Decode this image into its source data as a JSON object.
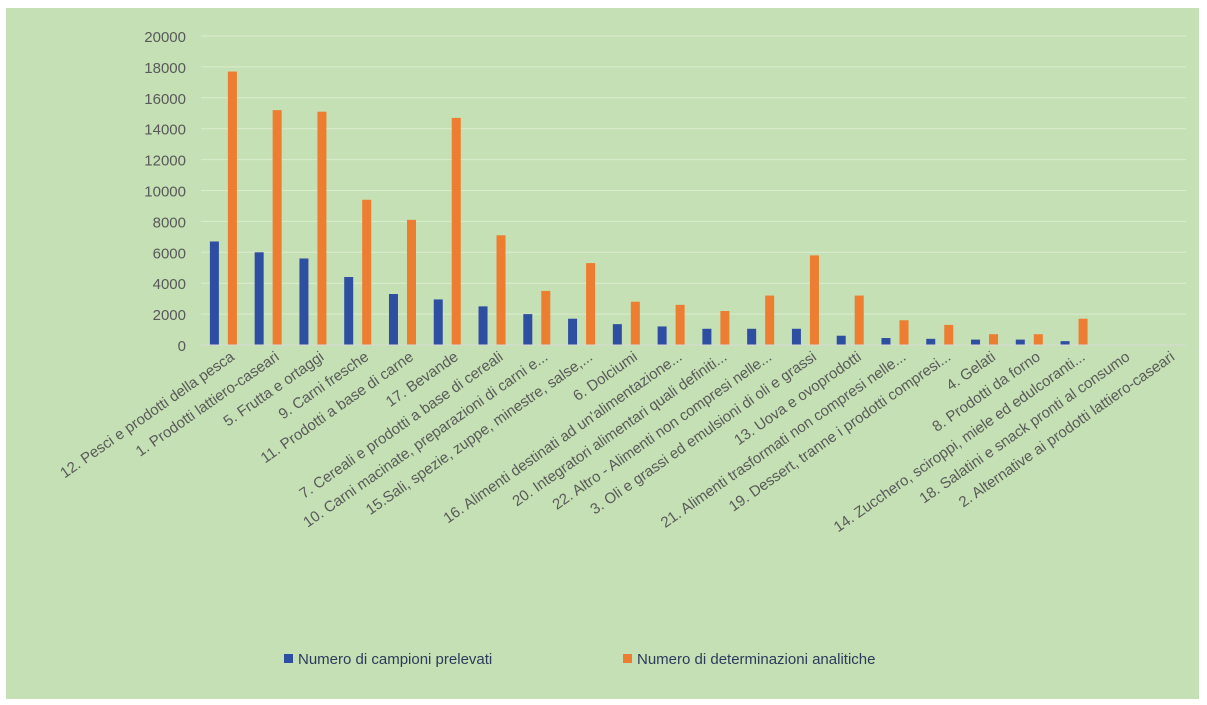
{
  "colors": {
    "background": "#c5e0b4",
    "gridline": "#dbeccf",
    "series1": "#2e4ea1",
    "series2": "#ed7d31",
    "tick_text": "#595959"
  },
  "chart_data": {
    "type": "bar",
    "title": "",
    "xlabel": "",
    "ylabel": "",
    "ylim": [
      0,
      20000
    ],
    "yticks": [
      0,
      2000,
      4000,
      6000,
      8000,
      10000,
      12000,
      14000,
      16000,
      18000,
      20000
    ],
    "grid": true,
    "legend_position": "bottom",
    "categories": [
      "12. Pesci e prodotti della pesca",
      "1. Prodotti lattiero-caseari",
      "5. Frutta e ortaggi",
      "9. Carni fresche",
      "11. Prodotti a base di carne",
      "17. Bevande",
      "7. Cereali e prodotti a base di cereali",
      "10. Carni macinate, preparazioni di carni e...",
      "15.Sali, spezie, zuppe, minestre, salse,...",
      "6. Dolciumi",
      "16. Alimenti destinati ad un'alimentazione...",
      "20. Integratori alimentari quali definiti...",
      "22. Altro - Alimenti non compresi nelle...",
      "3. Oli e grassi ed emulsioni di oli e grassi",
      "13. Uova e ovoprodotti",
      "21. Alimenti trasformati non compresi nelle...",
      "19. Dessert, tranne i prodotti compresi...",
      "4. Gelati",
      "8. Prodotti da forno",
      "14. Zucchero, sciroppi, miele ed edulcoranti...",
      "18. Salatini e snack pronti al consumo",
      "2. Alternative ai prodotti lattiero-caseari"
    ],
    "series": [
      {
        "name": "Numero di campioni prelevati",
        "values": [
          6700,
          6000,
          5600,
          4400,
          3300,
          2950,
          2500,
          2000,
          1700,
          1350,
          1200,
          1050,
          1050,
          1050,
          600,
          450,
          400,
          350,
          350,
          250,
          0,
          0
        ]
      },
      {
        "name": "Numero di determinazioni analitiche",
        "values": [
          17700,
          15200,
          15100,
          9400,
          8100,
          14700,
          7100,
          3500,
          5300,
          2800,
          2600,
          2200,
          3200,
          5800,
          3200,
          1600,
          1300,
          700,
          700,
          1700,
          0,
          0
        ]
      }
    ]
  }
}
